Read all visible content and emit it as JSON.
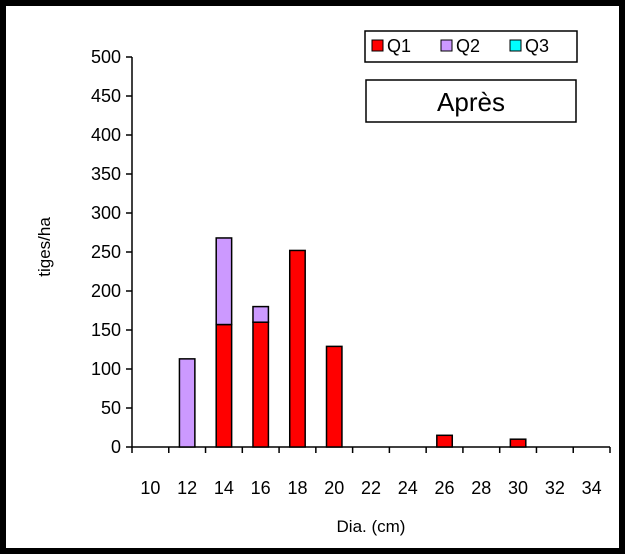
{
  "chart_data": {
    "type": "bar",
    "stacked": true,
    "categories": [
      "10",
      "12",
      "14",
      "16",
      "18",
      "20",
      "22",
      "24",
      "26",
      "28",
      "30",
      "32",
      "34"
    ],
    "series": [
      {
        "name": "Q1",
        "color": "#ff0000",
        "values": [
          0,
          0,
          157,
          160,
          252,
          129,
          0,
          0,
          15,
          0,
          10,
          0,
          0
        ]
      },
      {
        "name": "Q2",
        "color": "#cc99ff",
        "values": [
          0,
          113,
          111,
          20,
          0,
          0,
          0,
          0,
          0,
          0,
          0,
          0,
          0
        ]
      },
      {
        "name": "Q3",
        "color": "#00ffff",
        "values": [
          0,
          0,
          0,
          0,
          0,
          0,
          0,
          0,
          0,
          0,
          0,
          0,
          0
        ]
      }
    ],
    "xlabel": "Dia. (cm)",
    "ylabel": "tiges/ha",
    "ylim": [
      0,
      500
    ],
    "yticks": [
      0,
      50,
      100,
      150,
      200,
      250,
      300,
      350,
      400,
      450,
      500
    ],
    "annotation": "Après",
    "legend_position": "top-right",
    "grid": false
  }
}
